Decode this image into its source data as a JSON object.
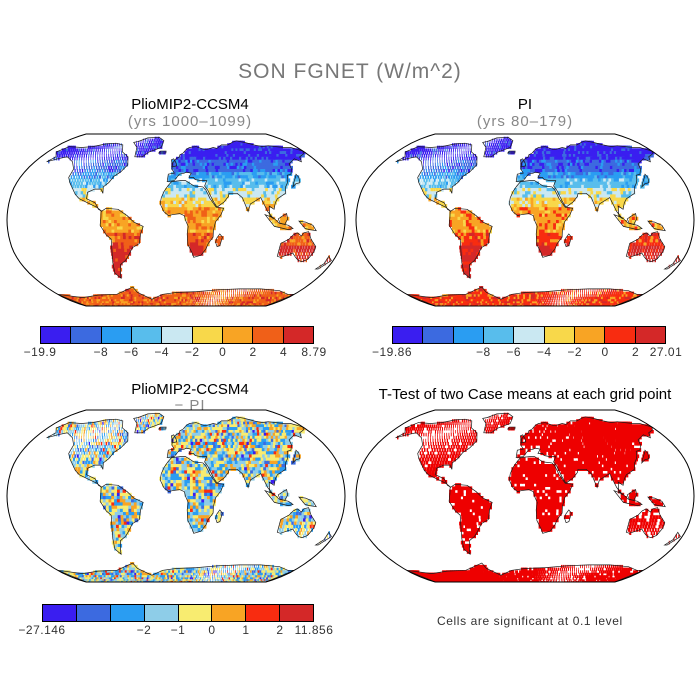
{
  "figure": {
    "title": "SON FGNET (W/m^2)",
    "panels": [
      {
        "id": "plio",
        "title": "PlioMIP2-CCSM4",
        "subtitle": "(yrs 1000–1099)",
        "scheme": "absolute",
        "colorbar": {
          "colors": [
            "#3a1ef0",
            "#3c6ae0",
            "#2a9df2",
            "#58bdec",
            "#cae8f2",
            "#f8d84a",
            "#f8a424",
            "#f06018",
            "#d42828"
          ],
          "labels": [
            "−19.9",
            "−8",
            "−6",
            "−4",
            "−2",
            "0",
            "2",
            "4",
            "8.79"
          ]
        }
      },
      {
        "id": "pi",
        "title": "PI",
        "subtitle": "(yrs 80–179)",
        "scheme": "absolute",
        "colorbar": {
          "colors": [
            "#3a1ef0",
            "#3c6ae0",
            "#2a9df2",
            "#58bdec",
            "#cae8f2",
            "#f8d84a",
            "#f8a424",
            "#f82c10",
            "#d42828"
          ],
          "labels": [
            "−19.86",
            "−8",
            "−6",
            "−4",
            "−2",
            "0",
            "2",
            "27.01"
          ]
        }
      },
      {
        "id": "diff",
        "title": "PlioMIP2-CCSM4",
        "subtitle": "− PI",
        "scheme": "difference",
        "colorbar": {
          "colors": [
            "#3a1ef0",
            "#3c6ae0",
            "#2a9df2",
            "#8ecde8",
            "#f8ec70",
            "#f8a424",
            "#f82c10",
            "#d42828"
          ],
          "labels": [
            "−27.146",
            "−2",
            "−1",
            "0",
            "1",
            "2",
            "11.856"
          ]
        }
      },
      {
        "id": "ttest",
        "title": "T-Test of two Case means at each grid point",
        "subtitle": "",
        "scheme": "significance",
        "note": "Cells are significant at 0.1 level",
        "significant_color": "#ee0000"
      }
    ]
  }
}
